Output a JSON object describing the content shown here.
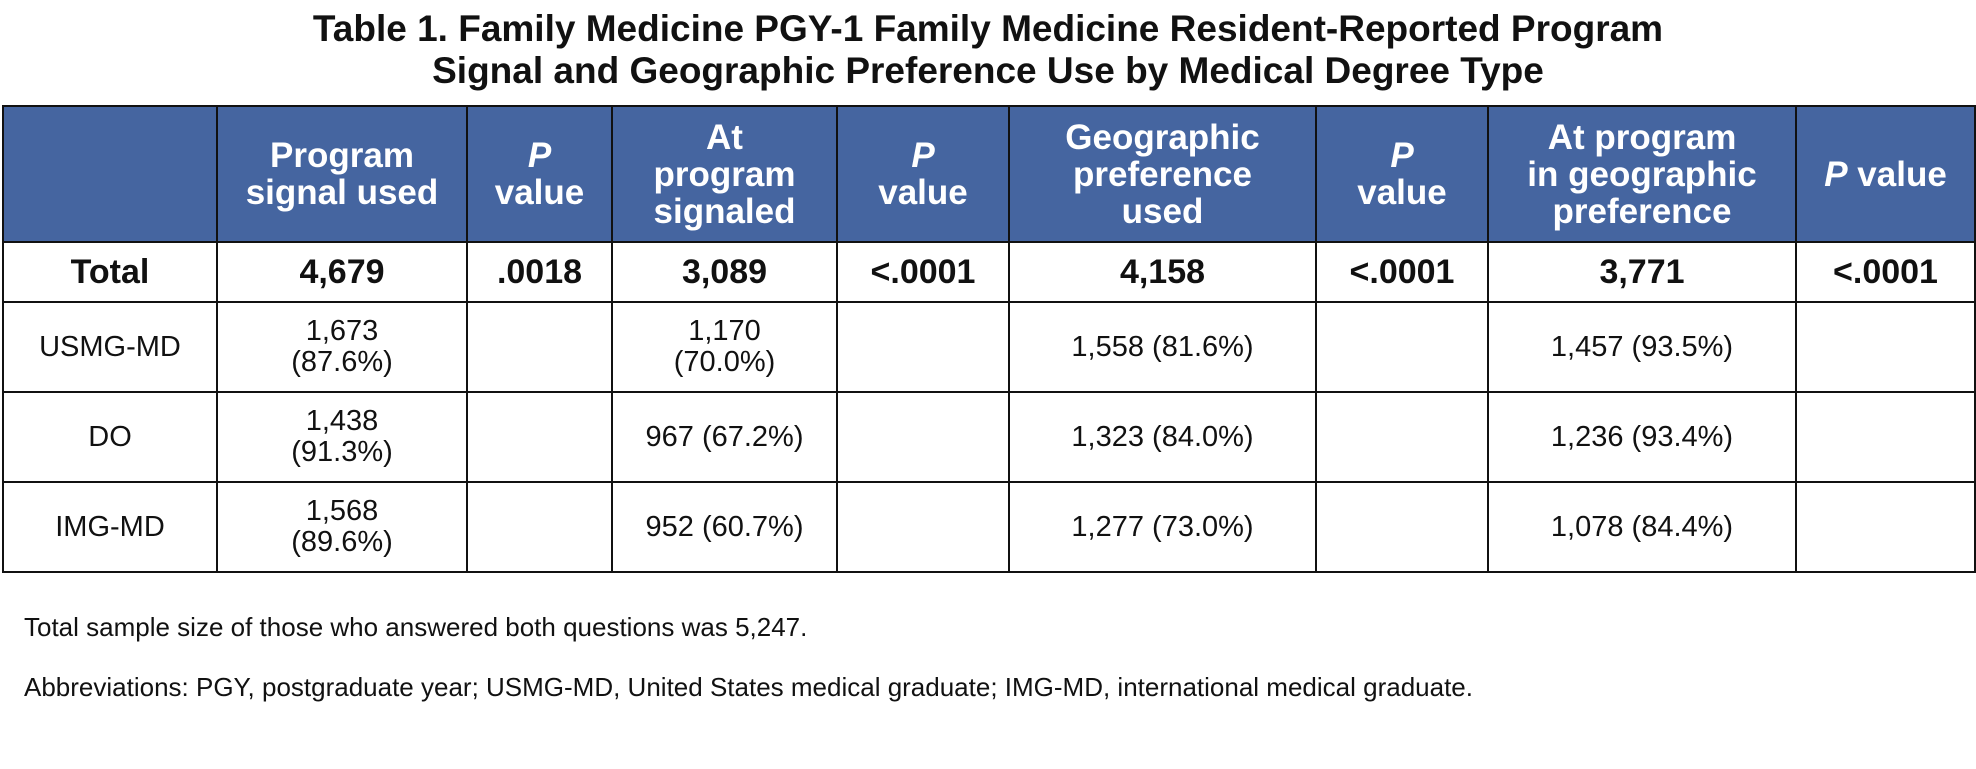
{
  "title": {
    "line1": "Table 1. Family Medicine PGY-1 Family Medicine Resident-Reported Program",
    "line2": "Signal and Geographic Preference Use by Medical Degree Type"
  },
  "table": {
    "headers": [
      {
        "lines": [
          ""
        ]
      },
      {
        "lines": [
          "Program",
          "signal used"
        ]
      },
      {
        "lines": [
          "P",
          "value"
        ],
        "italic_first": "P"
      },
      {
        "lines": [
          "At",
          "program",
          "signaled"
        ]
      },
      {
        "lines": [
          "P",
          "value"
        ],
        "italic_first": "P"
      },
      {
        "lines": [
          "Geographic",
          "preference",
          "used"
        ]
      },
      {
        "lines": [
          "P",
          "value"
        ],
        "italic_first": "P"
      },
      {
        "lines": [
          "At program",
          "in geographic",
          "preference"
        ]
      },
      {
        "lines": [
          "P value"
        ],
        "italic_first": "P"
      }
    ],
    "total_row": [
      "Total",
      "4,679",
      ".0018",
      "3,089",
      "<.0001",
      "4,158",
      "<.0001",
      "3,771",
      "<.0001"
    ],
    "rows": [
      [
        "USMG-MD",
        "1,673\n(87.6%)",
        "",
        "1,170\n(70.0%)",
        "",
        "1,558 (81.6%)",
        "",
        "1,457 (93.5%)",
        ""
      ],
      [
        "DO",
        "1,438\n(91.3%)",
        "",
        "967 (67.2%)",
        "",
        "1,323 (84.0%)",
        "",
        "1,236 (93.4%)",
        ""
      ],
      [
        "IMG-MD",
        "1,568\n(89.6%)",
        "",
        "952 (60.7%)",
        "",
        "1,277 (73.0%)",
        "",
        "1,078 (84.4%)",
        ""
      ]
    ]
  },
  "notes": {
    "sample_size": "Total sample size of those who answered both questions was 5,247.",
    "abbreviations": "Abbreviations: PGY, postgraduate year; USMG-MD, United States medical graduate; IMG-MD, international medical graduate."
  },
  "colors": {
    "header_bg": "#4565a0",
    "header_text": "#ffffff",
    "border": "#111111"
  }
}
